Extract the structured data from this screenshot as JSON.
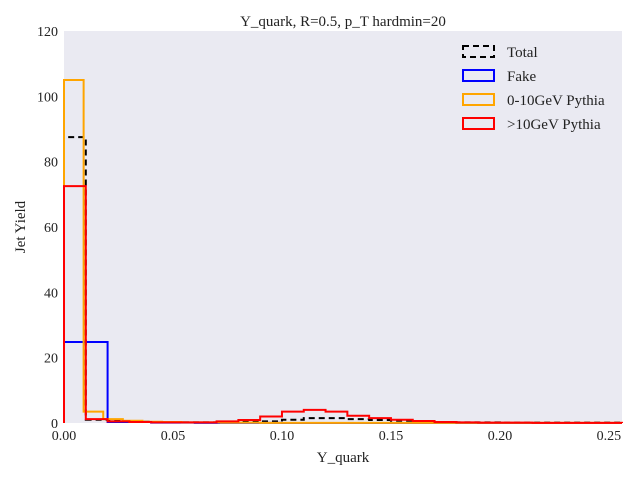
{
  "chart_data": {
    "type": "histogram",
    "title": "Y_quark, R=0.5, p_T hardmin=20",
    "xlabel": "Y_quark",
    "ylabel": "Jet Yield",
    "xlim": [
      0.0,
      0.256
    ],
    "ylim": [
      0,
      120
    ],
    "xticks": [
      "0.00",
      "0.05",
      "0.10",
      "0.15",
      "0.20",
      "0.25"
    ],
    "yticks": [
      "0",
      "20",
      "40",
      "60",
      "80",
      "100",
      "120"
    ],
    "background": "#eaeaf2",
    "grid": false,
    "legend_position": "top-right",
    "series": [
      {
        "name": "Total",
        "color": "#000000",
        "style": "dashed",
        "bins": [
          [
            0.0,
            0.01,
            87.5
          ],
          [
            0.01,
            0.02,
            1.0
          ],
          [
            0.02,
            0.03,
            0.6
          ],
          [
            0.03,
            0.04,
            0.4
          ],
          [
            0.04,
            0.06,
            0.2
          ],
          [
            0.06,
            0.08,
            0.2
          ],
          [
            0.08,
            0.09,
            0.3
          ],
          [
            0.09,
            0.1,
            0.5
          ],
          [
            0.1,
            0.11,
            1.0
          ],
          [
            0.11,
            0.12,
            1.5
          ],
          [
            0.12,
            0.13,
            1.5
          ],
          [
            0.13,
            0.14,
            1.2
          ],
          [
            0.14,
            0.15,
            0.9
          ],
          [
            0.15,
            0.16,
            0.7
          ],
          [
            0.16,
            0.17,
            0.5
          ],
          [
            0.17,
            0.18,
            0.3
          ],
          [
            0.18,
            0.2,
            0.2
          ],
          [
            0.2,
            0.256,
            0.1
          ]
        ]
      },
      {
        "name": "Fake",
        "color": "#0000ff",
        "style": "solid",
        "bins": [
          [
            0.0,
            0.02,
            24.8
          ],
          [
            0.02,
            0.04,
            0.3
          ],
          [
            0.04,
            0.06,
            0.1
          ],
          [
            0.06,
            0.08,
            0.05
          ],
          [
            0.08,
            0.1,
            0.03
          ],
          [
            0.1,
            0.256,
            0.0
          ]
        ]
      },
      {
        "name": "0-10GeV Pythia",
        "color": "#ffa500",
        "style": "solid",
        "bins": [
          [
            0.0,
            0.009,
            105.0
          ],
          [
            0.009,
            0.018,
            3.5
          ],
          [
            0.018,
            0.027,
            1.2
          ],
          [
            0.027,
            0.036,
            0.7
          ],
          [
            0.036,
            0.045,
            0.4
          ],
          [
            0.045,
            0.054,
            0.3
          ],
          [
            0.054,
            0.072,
            0.2
          ],
          [
            0.072,
            0.09,
            0.1
          ],
          [
            0.09,
            0.108,
            0.05
          ],
          [
            0.108,
            0.256,
            0.02
          ]
        ]
      },
      {
        "name": ">10GeV Pythia",
        "color": "#ff0000",
        "style": "solid",
        "bins": [
          [
            0.0,
            0.01,
            72.5
          ],
          [
            0.01,
            0.02,
            1.2
          ],
          [
            0.02,
            0.03,
            0.5
          ],
          [
            0.03,
            0.04,
            0.3
          ],
          [
            0.04,
            0.05,
            0.2
          ],
          [
            0.05,
            0.06,
            0.2
          ],
          [
            0.06,
            0.07,
            0.2
          ],
          [
            0.07,
            0.08,
            0.5
          ],
          [
            0.08,
            0.09,
            0.9
          ],
          [
            0.09,
            0.1,
            2.0
          ],
          [
            0.1,
            0.11,
            3.5
          ],
          [
            0.11,
            0.12,
            4.0
          ],
          [
            0.12,
            0.13,
            3.5
          ],
          [
            0.13,
            0.14,
            2.2
          ],
          [
            0.14,
            0.15,
            1.5
          ],
          [
            0.15,
            0.16,
            1.0
          ],
          [
            0.16,
            0.17,
            0.6
          ],
          [
            0.17,
            0.18,
            0.3
          ],
          [
            0.18,
            0.19,
            0.2
          ],
          [
            0.19,
            0.215,
            0.1
          ],
          [
            0.215,
            0.256,
            0.05
          ]
        ]
      }
    ]
  }
}
